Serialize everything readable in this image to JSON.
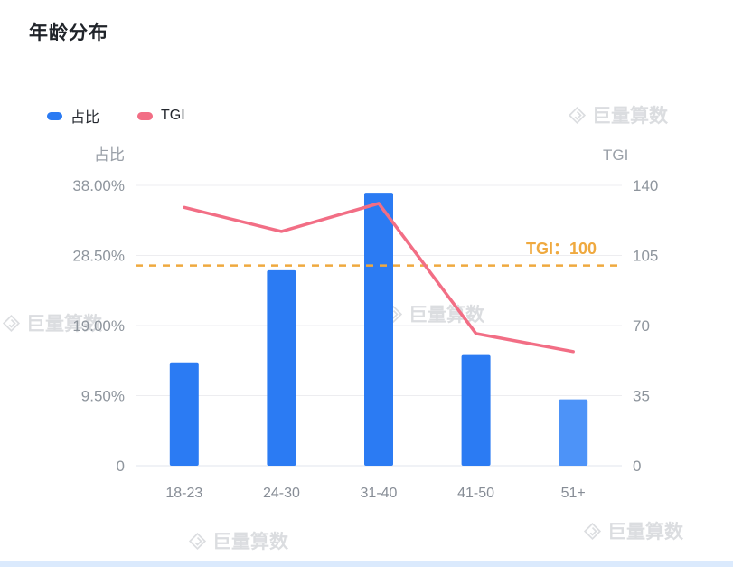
{
  "page": {
    "title": "年龄分布",
    "watermark_text": "巨量算数"
  },
  "legend": [
    {
      "label": "占比",
      "color": "#2B7BF3"
    },
    {
      "label": "TGI",
      "color": "#F26E85"
    }
  ],
  "chart_data": {
    "type": "bar+line",
    "title": "年龄分布",
    "categories": [
      "18-23",
      "24-30",
      "31-40",
      "41-50",
      "51+"
    ],
    "series": [
      {
        "name": "占比",
        "type": "bar",
        "axis": "left",
        "values": [
          14,
          26.5,
          37,
          15,
          9
        ],
        "color": "#2B7BF3",
        "bar_colors": [
          "#2B7BF3",
          "#2B7BF3",
          "#2B7BF3",
          "#2B7BF3",
          "#4D93F8"
        ]
      },
      {
        "name": "TGI",
        "type": "line",
        "axis": "right",
        "values": [
          129,
          117,
          131,
          66,
          57
        ],
        "color": "#F26E85"
      }
    ],
    "left_axis": {
      "name": "占比",
      "ticks": [
        "38.00%",
        "28.50%",
        "19.00%",
        "9.50%",
        "0"
      ],
      "max": 38,
      "min": 0
    },
    "right_axis": {
      "name": "TGI",
      "ticks": [
        "140",
        "105",
        "70",
        "35",
        "0"
      ],
      "max": 140,
      "min": 0
    },
    "reference_line": {
      "value": 100,
      "label": "TGI：100",
      "color": "#EFA93F"
    },
    "grid": true,
    "legend_position": "top-left"
  }
}
